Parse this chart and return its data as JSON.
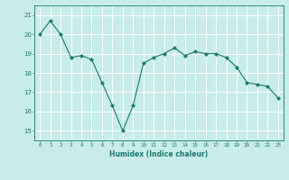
{
  "title": "",
  "xlabel": "Humidex (Indice chaleur)",
  "ylabel": "",
  "x": [
    0,
    1,
    2,
    3,
    4,
    5,
    6,
    7,
    8,
    9,
    10,
    11,
    12,
    13,
    14,
    15,
    16,
    17,
    18,
    19,
    20,
    21,
    22,
    23
  ],
  "y": [
    20.0,
    20.7,
    20.0,
    18.8,
    18.9,
    18.7,
    17.5,
    16.3,
    15.0,
    16.3,
    18.5,
    18.8,
    19.0,
    19.3,
    18.9,
    19.1,
    19.0,
    19.0,
    18.8,
    18.3,
    17.5,
    17.4,
    17.3,
    16.7
  ],
  "line_color": "#1a7a6e",
  "marker_color": "#1a7a6e",
  "bg_color": "#c8ecea",
  "grid_color": "#ffffff",
  "tick_color": "#1a7a6e",
  "label_color": "#1a7a6e",
  "xlim": [
    -0.5,
    23.5
  ],
  "ylim": [
    14.5,
    21.5
  ],
  "yticks": [
    15,
    16,
    17,
    18,
    19,
    20,
    21
  ],
  "xticks": [
    0,
    1,
    2,
    3,
    4,
    5,
    6,
    7,
    8,
    9,
    10,
    11,
    12,
    13,
    14,
    15,
    16,
    17,
    18,
    19,
    20,
    21,
    22,
    23
  ]
}
